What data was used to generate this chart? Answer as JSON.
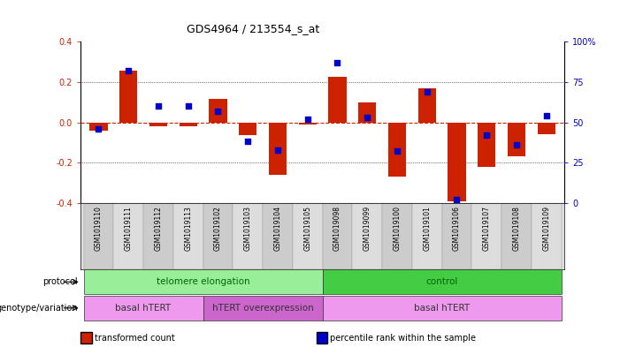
{
  "title": "GDS4964 / 213554_s_at",
  "samples": [
    "GSM1019110",
    "GSM1019111",
    "GSM1019112",
    "GSM1019113",
    "GSM1019102",
    "GSM1019103",
    "GSM1019104",
    "GSM1019105",
    "GSM1019098",
    "GSM1019099",
    "GSM1019100",
    "GSM1019101",
    "GSM1019106",
    "GSM1019107",
    "GSM1019108",
    "GSM1019109"
  ],
  "bar_values": [
    -0.04,
    0.255,
    -0.02,
    -0.02,
    0.115,
    -0.065,
    -0.26,
    -0.01,
    0.225,
    0.1,
    -0.27,
    0.17,
    -0.39,
    -0.22,
    -0.17,
    -0.06
  ],
  "dot_values": [
    46,
    82,
    60,
    60,
    57,
    38,
    33,
    52,
    87,
    53,
    32,
    69,
    2,
    42,
    36,
    54
  ],
  "ylim": [
    -0.4,
    0.4
  ],
  "y2lim": [
    0,
    100
  ],
  "yticks": [
    -0.4,
    -0.2,
    0.0,
    0.2,
    0.4
  ],
  "y2ticks": [
    0,
    25,
    50,
    75,
    100
  ],
  "bar_color": "#cc2200",
  "dot_color": "#0000cc",
  "hline_color": "#cc2200",
  "protocol_groups": [
    {
      "label": "telomere elongation",
      "start": 0,
      "end": 8,
      "color": "#99ee99"
    },
    {
      "label": "control",
      "start": 8,
      "end": 16,
      "color": "#44cc44"
    }
  ],
  "genotype_groups": [
    {
      "label": "basal hTERT",
      "start": 0,
      "end": 4,
      "color": "#ee99ee"
    },
    {
      "label": "hTERT overexpression",
      "start": 4,
      "end": 8,
      "color": "#cc66cc"
    },
    {
      "label": "basal hTERT",
      "start": 8,
      "end": 16,
      "color": "#ee99ee"
    }
  ],
  "legend_items": [
    {
      "label": "transformed count",
      "color": "#cc2200"
    },
    {
      "label": "percentile rank within the sample",
      "color": "#0000cc"
    }
  ],
  "bg_color": "#ffffff"
}
